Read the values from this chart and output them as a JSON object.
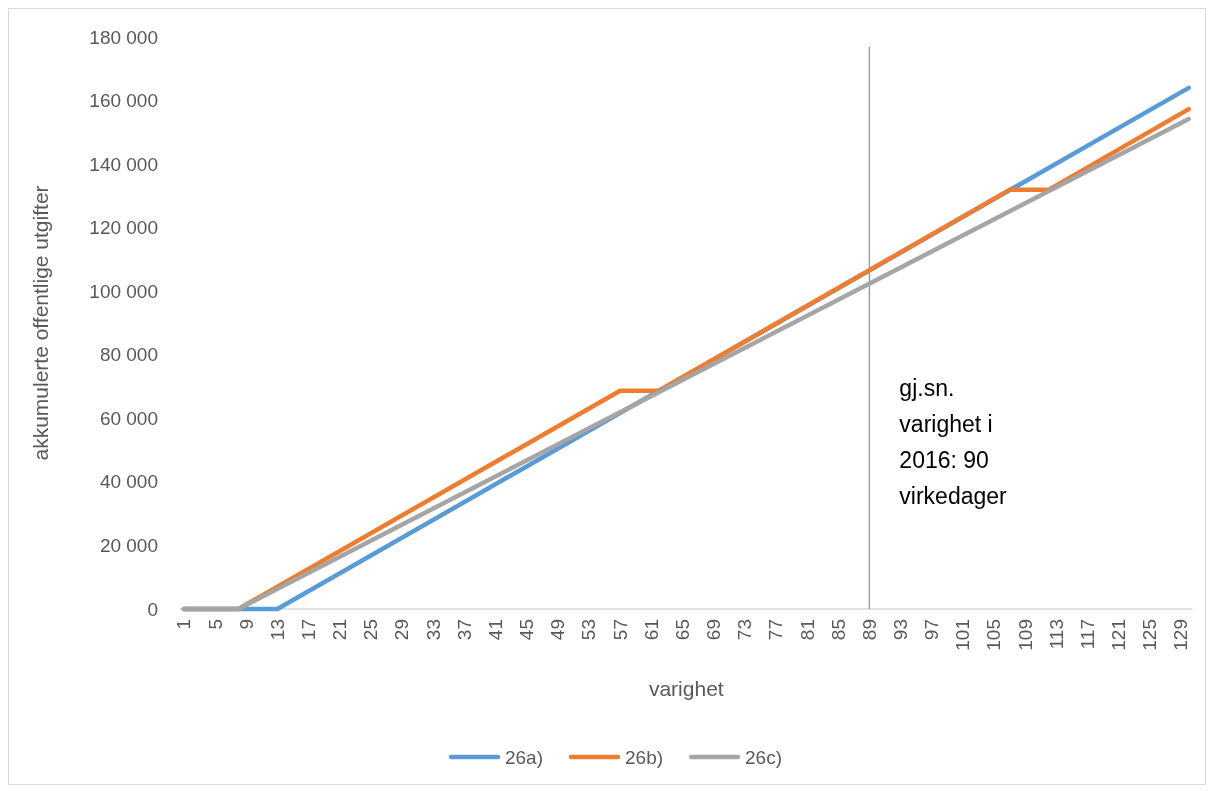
{
  "chart_data": {
    "type": "line",
    "xlabel": "varighet",
    "ylabel": "akkumulerte offentlige utgifter",
    "xlim": [
      0.5,
      130.5
    ],
    "xticks": [
      1,
      5,
      9,
      13,
      17,
      21,
      25,
      29,
      33,
      37,
      41,
      45,
      49,
      53,
      57,
      61,
      65,
      69,
      73,
      77,
      81,
      85,
      89,
      93,
      97,
      101,
      105,
      109,
      113,
      117,
      121,
      125,
      129
    ],
    "ylim": [
      0,
      180000
    ],
    "yticks": [
      0,
      {
        "value": 20000,
        "label": "20 000"
      },
      {
        "value": 40000,
        "label": "40 000"
      },
      {
        "value": 60000,
        "label": "60 000"
      },
      {
        "value": 80000,
        "label": "80 000"
      },
      {
        "value": 100000,
        "label": "100 000"
      },
      {
        "value": 120000,
        "label": "120 000"
      },
      {
        "value": 140000,
        "label": "140 000"
      },
      {
        "value": 160000,
        "label": "160 000"
      },
      {
        "value": 180000,
        "label": "180 000"
      }
    ],
    "series": [
      {
        "name": "26a)",
        "color": "#5b9bd5",
        "x": [
          1,
          13,
          130
        ],
        "values": [
          0,
          0,
          164000
        ]
      },
      {
        "name": "26b)",
        "color": "#ed7d31",
        "x": [
          1,
          8,
          57,
          62,
          107,
          112,
          130
        ],
        "values": [
          0,
          0,
          68700,
          68700,
          131900,
          131900,
          157300
        ]
      },
      {
        "name": "26c)",
        "color": "#a5a5a5",
        "x": [
          1,
          8,
          130
        ],
        "values": [
          0,
          0,
          154200
        ]
      }
    ],
    "ref_lines": [
      {
        "axis": "x",
        "value": 89,
        "color": "#5b9bd5"
      }
    ],
    "annotations": [
      "gj.sn. varighet i 2016: 90 virkedager"
    ],
    "legend": "bottom"
  }
}
